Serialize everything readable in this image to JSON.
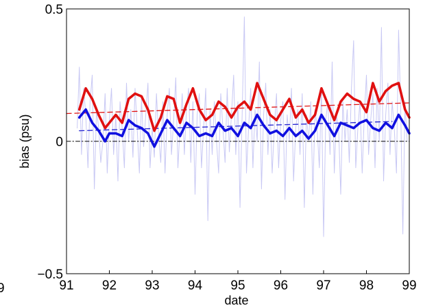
{
  "chart_data": {
    "type": "line",
    "title": "",
    "xlabel": "date",
    "ylabel": "bias (psu)",
    "xlim": [
      91,
      99
    ],
    "ylim": [
      -0.5,
      0.5
    ],
    "x_ticks": [
      "91",
      "92",
      "93",
      "94",
      "95",
      "96",
      "97",
      "98",
      "99"
    ],
    "y_ticks": [
      "0.5",
      "0",
      "−0.5"
    ],
    "clipped_fragments": {
      "left_x_tick": "9"
    },
    "grid": false,
    "legend": "none",
    "series": [
      {
        "color": "#e01010",
        "style": "thick solid",
        "x": [
          91.3,
          91.45,
          91.6,
          91.75,
          91.9,
          92.0,
          92.15,
          92.3,
          92.45,
          92.6,
          92.75,
          92.9,
          93.05,
          93.2,
          93.35,
          93.5,
          93.65,
          93.8,
          93.95,
          94.1,
          94.25,
          94.4,
          94.55,
          94.7,
          94.85,
          95.0,
          95.15,
          95.3,
          95.45,
          95.6,
          95.75,
          95.9,
          96.05,
          96.2,
          96.35,
          96.5,
          96.65,
          96.8,
          96.95,
          97.1,
          97.25,
          97.4,
          97.55,
          97.7,
          97.85,
          98.0,
          98.15,
          98.3,
          98.45,
          98.6,
          98.75,
          98.9,
          99.0
        ],
        "y": [
          0.12,
          0.2,
          0.16,
          0.1,
          0.05,
          0.07,
          0.1,
          0.07,
          0.16,
          0.18,
          0.17,
          0.12,
          0.04,
          0.09,
          0.17,
          0.16,
          0.07,
          0.14,
          0.2,
          0.12,
          0.08,
          0.1,
          0.15,
          0.13,
          0.09,
          0.13,
          0.15,
          0.12,
          0.22,
          0.16,
          0.1,
          0.08,
          0.12,
          0.16,
          0.09,
          0.12,
          0.07,
          0.1,
          0.2,
          0.14,
          0.08,
          0.15,
          0.18,
          0.16,
          0.15,
          0.11,
          0.22,
          0.15,
          0.19,
          0.21,
          0.22,
          0.12,
          0.09
        ]
      },
      {
        "color": "#1010e0",
        "style": "thick solid",
        "x": [
          91.3,
          91.45,
          91.6,
          91.75,
          91.9,
          92.0,
          92.15,
          92.3,
          92.45,
          92.6,
          92.75,
          92.9,
          93.05,
          93.2,
          93.35,
          93.5,
          93.65,
          93.8,
          93.95,
          94.1,
          94.25,
          94.4,
          94.55,
          94.7,
          94.85,
          95.0,
          95.15,
          95.3,
          95.45,
          95.6,
          95.75,
          95.9,
          96.05,
          96.2,
          96.35,
          96.5,
          96.65,
          96.8,
          96.95,
          97.1,
          97.25,
          97.4,
          97.55,
          97.7,
          97.85,
          98.0,
          98.15,
          98.3,
          98.45,
          98.6,
          98.75,
          98.9,
          99.0
        ],
        "y": [
          0.09,
          0.12,
          0.07,
          0.04,
          0.0,
          0.03,
          0.03,
          0.02,
          0.08,
          0.06,
          0.05,
          0.03,
          -0.02,
          0.03,
          0.08,
          0.05,
          0.02,
          0.07,
          0.05,
          0.02,
          0.03,
          0.02,
          0.07,
          0.04,
          0.05,
          0.02,
          0.07,
          0.05,
          0.1,
          0.06,
          0.03,
          0.04,
          0.02,
          0.05,
          0.02,
          0.04,
          0.01,
          0.04,
          0.1,
          0.06,
          0.02,
          0.07,
          0.06,
          0.05,
          0.07,
          0.08,
          0.05,
          0.04,
          0.07,
          0.05,
          0.1,
          0.06,
          0.03
        ]
      },
      {
        "color": "#e01010",
        "style": "dashed trend",
        "x": [
          91.0,
          99.0
        ],
        "y": [
          0.105,
          0.145
        ]
      },
      {
        "color": "#2020d0",
        "style": "dashed trend",
        "x": [
          91.3,
          98.6
        ],
        "y": [
          0.04,
          0.075
        ]
      },
      {
        "color": "#000000",
        "style": "dash-dot zero line",
        "x": [
          91.0,
          99.0
        ],
        "y": [
          0.0,
          0.0
        ]
      },
      {
        "color": "#c8c8f4",
        "style": "thin noisy background",
        "x": [
          91.25,
          91.3,
          91.35,
          91.4,
          91.45,
          91.5,
          91.55,
          91.6,
          91.65,
          91.7,
          91.75,
          91.8,
          91.85,
          91.9,
          91.95,
          92.0,
          92.05,
          92.1,
          92.15,
          92.2,
          92.25,
          92.3,
          92.35,
          92.4,
          92.45,
          92.5,
          92.55,
          92.6,
          92.65,
          92.7,
          92.75,
          92.8,
          92.85,
          92.9,
          92.95,
          93.0,
          93.05,
          93.1,
          93.15,
          93.2,
          93.25,
          93.3,
          93.35,
          93.4,
          93.45,
          93.5,
          93.55,
          93.6,
          93.65,
          93.7,
          93.75,
          93.8,
          93.85,
          93.9,
          93.95,
          94.0,
          94.05,
          94.1,
          94.15,
          94.2,
          94.25,
          94.3,
          94.35,
          94.4,
          94.45,
          94.5,
          94.55,
          94.6,
          94.65,
          94.7,
          94.75,
          94.8,
          94.85,
          94.9,
          94.95,
          95.0,
          95.05,
          95.1,
          95.15,
          95.2,
          95.25,
          95.3,
          95.35,
          95.4,
          95.45,
          95.5,
          95.55,
          95.6,
          95.65,
          95.7,
          95.75,
          95.8,
          95.85,
          95.9,
          95.95,
          96.0,
          96.05,
          96.1,
          96.15,
          96.2,
          96.25,
          96.3,
          96.35,
          96.4,
          96.45,
          96.5,
          96.55,
          96.6,
          96.65,
          96.7,
          96.75,
          96.8,
          96.85,
          96.9,
          96.95,
          97.0,
          97.05,
          97.1,
          97.15,
          97.2,
          97.25,
          97.3,
          97.35,
          97.4,
          97.45,
          97.5,
          97.55,
          97.6,
          97.65,
          97.7,
          97.75,
          97.8,
          97.85,
          97.9,
          97.95,
          98.0,
          98.05,
          98.1,
          98.15,
          98.2,
          98.25,
          98.3,
          98.35,
          98.4,
          98.45,
          98.5,
          98.55,
          98.6,
          98.65,
          98.7,
          98.75,
          98.8,
          98.85,
          98.9,
          98.95
        ],
        "y": [
          0.05,
          0.28,
          -0.05,
          0.2,
          0.1,
          -0.1,
          0.15,
          0.25,
          -0.18,
          0.12,
          0.05,
          -0.08,
          0.0,
          0.18,
          -0.12,
          0.08,
          0.2,
          -0.05,
          0.1,
          -0.15,
          0.15,
          0.05,
          -0.1,
          0.22,
          0.0,
          0.12,
          -0.06,
          0.2,
          0.05,
          -0.12,
          0.16,
          -0.02,
          0.1,
          0.22,
          -0.1,
          0.05,
          -0.06,
          0.18,
          0.02,
          -0.08,
          0.15,
          -0.12,
          0.1,
          0.2,
          -0.05,
          0.08,
          0.24,
          -0.1,
          0.05,
          0.18,
          -0.05,
          0.12,
          0.2,
          -0.08,
          0.15,
          -0.2,
          0.1,
          0.18,
          -0.1,
          0.05,
          0.2,
          -0.3,
          0.12,
          -0.05,
          0.15,
          0.0,
          -0.12,
          0.18,
          0.05,
          -0.08,
          0.2,
          -0.04,
          0.1,
          0.25,
          -0.05,
          0.15,
          -0.25,
          0.1,
          0.47,
          -0.12,
          0.05,
          0.2,
          -0.1,
          0.12,
          0.0,
          0.3,
          -0.18,
          0.1,
          0.22,
          -0.05,
          0.12,
          -0.12,
          0.05,
          0.18,
          -0.1,
          0.08,
          0.15,
          -0.22,
          0.1,
          0.0,
          0.2,
          -0.15,
          0.05,
          0.12,
          -0.05,
          0.18,
          -0.25,
          0.1,
          0.0,
          0.15,
          -0.2,
          0.12,
          0.05,
          -0.1,
          0.2,
          -0.36,
          0.08,
          0.15,
          -0.05,
          0.3,
          -0.12,
          0.1,
          0.05,
          -0.2,
          0.15,
          0.0,
          0.12,
          -0.08,
          0.2,
          0.38,
          -0.1,
          0.05,
          0.15,
          -0.12,
          0.1,
          0.25,
          -0.05,
          0.08,
          0.18,
          -0.1,
          0.2,
          0.0,
          0.43,
          -0.15,
          0.1,
          0.22,
          -0.05,
          0.15,
          0.05,
          -0.12,
          0.42,
          0.12,
          -0.35,
          0.15,
          0.0
        ]
      }
    ]
  }
}
